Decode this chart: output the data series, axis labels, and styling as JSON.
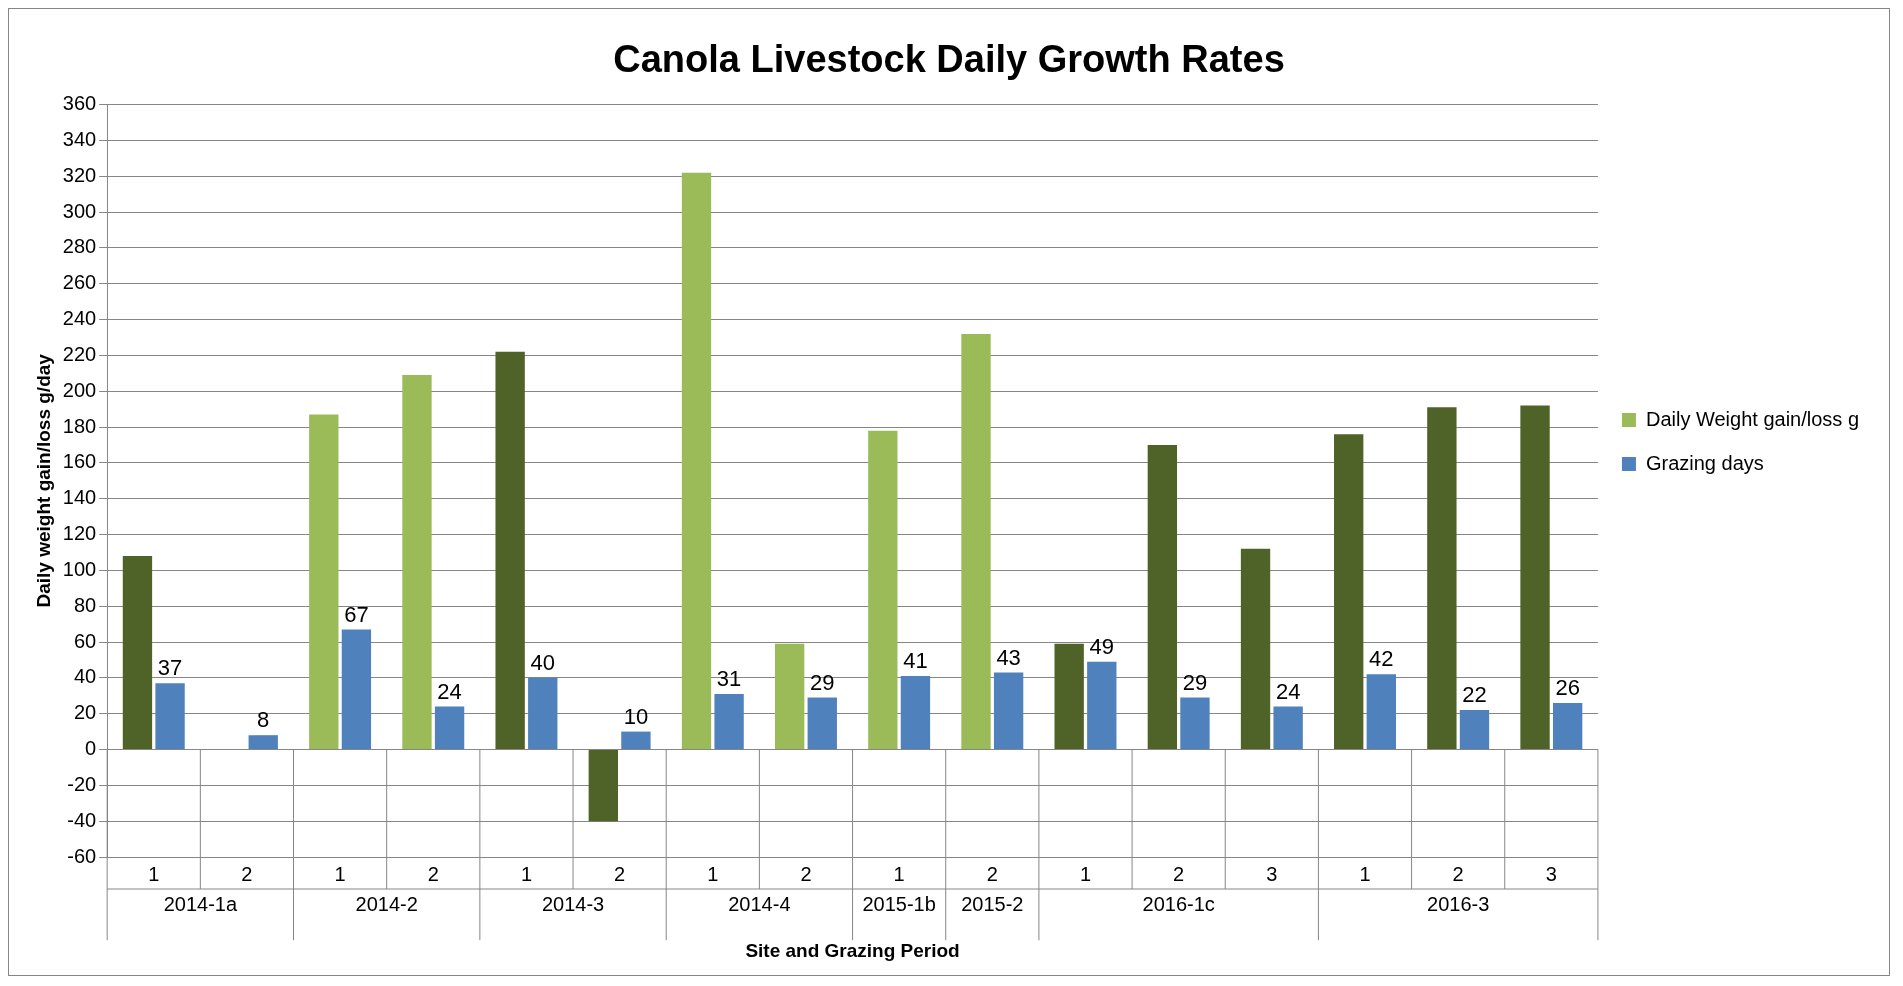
{
  "chart_data": {
    "type": "bar",
    "title": "Canola Livestock Daily Growth Rates",
    "xlabel": "Site and Grazing Period",
    "ylabel": "Daily weight gain/loss g/day",
    "categories": [
      "1",
      "2",
      "1",
      "2",
      "1",
      "2",
      "1",
      "2",
      "1",
      "2",
      "1",
      "2",
      "3",
      "1",
      "2",
      "3"
    ],
    "annotations": [
      "2014-1a",
      "2014-2",
      "2014-3",
      "2014-4",
      "2015-1b",
      "2015-2",
      "2016-1c",
      "2016-3"
    ],
    "series": [
      {
        "name": "Daily Weight gain/loss g",
        "color": "#9bbb59",
        "colors": [
          "#4f6228",
          "#4f6228",
          "#9bbb59",
          "#9bbb59",
          "#4f6228",
          "#4f6228",
          "#9bbb59",
          "#9bbb59",
          "#9bbb59",
          "#9bbb59",
          "#4f6228",
          "#4f6228",
          "#4f6228",
          "#4f6228",
          "#4f6228",
          "#4f6228"
        ],
        "values": [
          108,
          null,
          187,
          209,
          222,
          -40,
          322,
          59,
          178,
          232,
          59,
          170,
          112,
          176,
          191,
          192
        ]
      },
      {
        "name": "Grazing days",
        "color": "#4f81bd",
        "values": [
          37,
          8,
          67,
          24,
          40,
          10,
          31,
          29,
          41,
          43,
          49,
          29,
          24,
          42,
          22,
          26
        ],
        "value_labels": [
          "37",
          "8",
          "67",
          "24",
          "40",
          "10",
          "31",
          "29",
          "41",
          "43",
          "49",
          "29",
          "24",
          "42",
          "22",
          "26"
        ]
      }
    ],
    "ylim": [
      -60,
      360
    ],
    "yticks": [
      -60,
      -40,
      -20,
      0,
      20,
      40,
      60,
      80,
      100,
      120,
      140,
      160,
      180,
      200,
      220,
      240,
      260,
      280,
      300,
      320,
      340,
      360
    ],
    "grid": "y",
    "legend": "right"
  }
}
